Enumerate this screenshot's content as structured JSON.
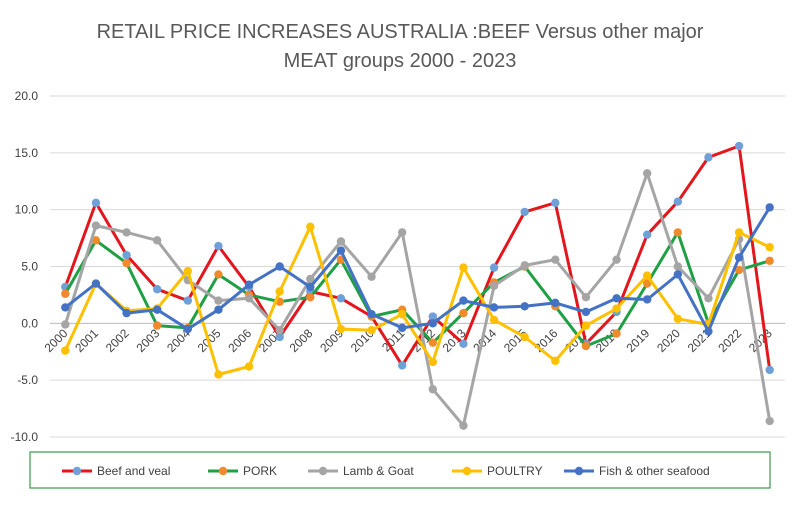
{
  "chart_data": {
    "type": "line",
    "title": "RETAIL PRICE INCREASES AUSTRALIA :BEEF Versus other major",
    "subtitle": "MEAT groups 2000 - 2023",
    "xlabel": "",
    "ylabel": "",
    "ylim": [
      -10,
      20
    ],
    "yticks": [
      "20.0",
      "15.0",
      "10.0",
      "5.0",
      "0.0",
      "-5.0",
      "-10.0"
    ],
    "grid": true,
    "legend_position": "bottom",
    "categories": [
      "2000",
      "2001",
      "2002",
      "2003",
      "2004",
      "2005",
      "2006",
      "2007",
      "2008",
      "2009",
      "2010",
      "2011",
      "2012",
      "2013",
      "2014",
      "2015",
      "2016",
      "2017",
      "2018",
      "2019",
      "2020",
      "2021",
      "2022",
      "2023"
    ],
    "series": [
      {
        "name": "Beef and veal",
        "line_color": "#e3161c",
        "marker_color": "#6fa0d8",
        "values": [
          3.2,
          10.6,
          6.0,
          3.0,
          2.0,
          6.8,
          3.2,
          -1.2,
          2.8,
          2.2,
          0.6,
          -3.7,
          0.6,
          -1.8,
          4.9,
          9.8,
          10.6,
          -1.8,
          1.0,
          7.8,
          10.7,
          14.6,
          15.6,
          -4.1
        ]
      },
      {
        "name": "PORK",
        "line_color": "#1fa045",
        "marker_color": "#f08a2c",
        "values": [
          2.6,
          7.3,
          5.3,
          -0.2,
          -0.4,
          4.3,
          2.5,
          1.9,
          2.3,
          5.6,
          0.6,
          1.2,
          -1.7,
          0.9,
          3.6,
          5.0,
          1.5,
          -2.0,
          -0.9,
          3.5,
          8.0,
          0.0,
          4.7,
          5.5
        ]
      },
      {
        "name": "Lamb & Goat",
        "line_color": "#a5a5a5",
        "marker_color": "#a5a5a5",
        "values": [
          -0.1,
          8.6,
          8.0,
          7.3,
          3.8,
          2.0,
          2.2,
          -0.6,
          3.9,
          7.2,
          4.1,
          8.0,
          -5.8,
          -9.0,
          3.3,
          5.1,
          5.6,
          2.3,
          5.6,
          13.2,
          5.0,
          2.2,
          7.4,
          -8.6
        ]
      },
      {
        "name": "POULTRY",
        "line_color": "#ffc000",
        "marker_color": "#ffc000",
        "values": [
          -2.4,
          3.5,
          1.1,
          1.3,
          4.6,
          -4.5,
          -3.8,
          2.8,
          8.5,
          -0.5,
          -0.6,
          0.8,
          -3.4,
          4.9,
          0.3,
          -1.2,
          -3.3,
          -0.2,
          1.3,
          4.2,
          0.4,
          -0.1,
          8.0,
          6.7
        ]
      },
      {
        "name": "Fish & other seafood",
        "line_color": "#4472c4",
        "marker_color": "#4472c4",
        "values": [
          1.4,
          3.5,
          0.9,
          1.2,
          -0.5,
          1.2,
          3.4,
          5.0,
          3.2,
          6.4,
          0.8,
          -0.4,
          0.0,
          2.0,
          1.4,
          1.5,
          1.8,
          1.0,
          2.2,
          2.1,
          4.3,
          -0.7,
          5.8,
          10.2
        ]
      }
    ]
  }
}
